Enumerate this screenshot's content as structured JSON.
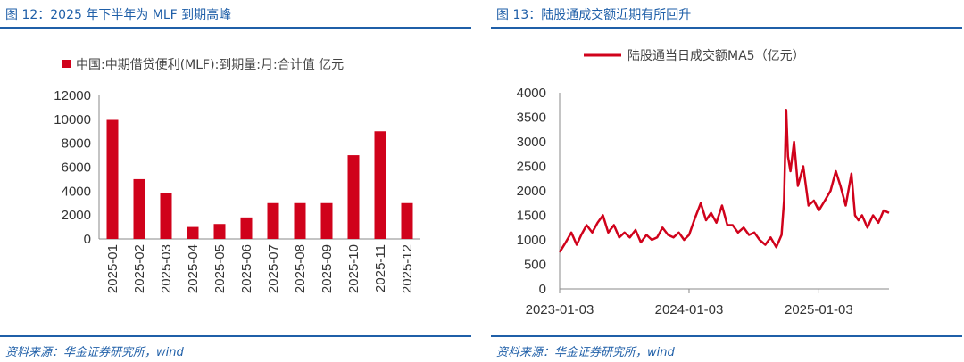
{
  "left": {
    "title": "图 12：2025 年下半年为 MLF 到期高峰",
    "source": "资料来源：华金证券研究所，wind",
    "chart_data": {
      "type": "bar",
      "legend": "中国:中期借贷便利(MLF):到期量:月:合计值 亿元",
      "categories": [
        "2025-01",
        "2025-02",
        "2025-03",
        "2025-04",
        "2025-05",
        "2025-06",
        "2025-07",
        "2025-08",
        "2025-09",
        "2025-10",
        "2025-11",
        "2025-12"
      ],
      "values": [
        9950,
        5000,
        3850,
        1000,
        1250,
        1800,
        3000,
        3000,
        3000,
        7000,
        9000,
        3000
      ],
      "ylim": [
        0,
        12000
      ],
      "yticks": [
        "0",
        "2000",
        "4000",
        "6000",
        "8000",
        "10000",
        "12000"
      ],
      "color": "#d0021b",
      "legend_position": "top"
    }
  },
  "right": {
    "title": "图 13：陆股通成交额近期有所回升",
    "source": "资料来源：华金证券研究所，wind",
    "chart_data": {
      "type": "line",
      "legend": "陆股通当日成交额MA5（亿元）",
      "x": [
        "2023-01-03",
        "2023-01-20",
        "2023-02-05",
        "2023-02-20",
        "2023-03-05",
        "2023-03-20",
        "2023-04-05",
        "2023-04-20",
        "2023-05-05",
        "2023-05-20",
        "2023-06-05",
        "2023-06-20",
        "2023-07-05",
        "2023-07-20",
        "2023-08-05",
        "2023-08-20",
        "2023-09-05",
        "2023-09-20",
        "2023-10-05",
        "2023-10-20",
        "2023-11-05",
        "2023-11-20",
        "2023-12-05",
        "2023-12-20",
        "2024-01-03",
        "2024-01-20",
        "2024-02-05",
        "2024-02-20",
        "2024-03-05",
        "2024-03-20",
        "2024-04-05",
        "2024-04-20",
        "2024-05-05",
        "2024-05-20",
        "2024-06-05",
        "2024-06-20",
        "2024-07-05",
        "2024-07-20",
        "2024-08-05",
        "2024-08-20",
        "2024-09-05",
        "2024-09-20",
        "2024-09-27",
        "2024-10-03",
        "2024-10-08",
        "2024-10-15",
        "2024-10-25",
        "2024-11-05",
        "2024-11-20",
        "2024-12-05",
        "2024-12-20",
        "2025-01-03",
        "2025-01-20",
        "2025-02-05",
        "2025-02-20",
        "2025-03-05",
        "2025-03-20",
        "2025-04-05",
        "2025-04-15",
        "2025-04-25",
        "2025-05-05",
        "2025-05-20",
        "2025-06-05",
        "2025-06-20",
        "2025-07-05",
        "2025-07-20"
      ],
      "y": [
        750,
        950,
        1150,
        900,
        1100,
        1300,
        1150,
        1350,
        1500,
        1150,
        1300,
        1050,
        1150,
        1050,
        1200,
        950,
        1100,
        1000,
        1050,
        1250,
        1100,
        1050,
        1150,
        1000,
        1100,
        1450,
        1750,
        1400,
        1550,
        1350,
        1700,
        1300,
        1300,
        1150,
        1250,
        1100,
        1150,
        1000,
        900,
        1050,
        850,
        1100,
        1800,
        3650,
        2700,
        2400,
        3000,
        2100,
        2500,
        1700,
        1800,
        1600,
        1800,
        2000,
        2400,
        2100,
        1700,
        2350,
        1500,
        1400,
        1500,
        1250,
        1500,
        1350,
        1600,
        1550
      ],
      "ylim": [
        0,
        4000
      ],
      "yticks": [
        "0",
        "500",
        "1000",
        "1500",
        "2000",
        "2500",
        "3000",
        "3500",
        "4000"
      ],
      "xticks": [
        "2023-01-03",
        "2024-01-03",
        "2025-01-03"
      ],
      "color": "#d0021b",
      "legend_position": "top"
    }
  }
}
